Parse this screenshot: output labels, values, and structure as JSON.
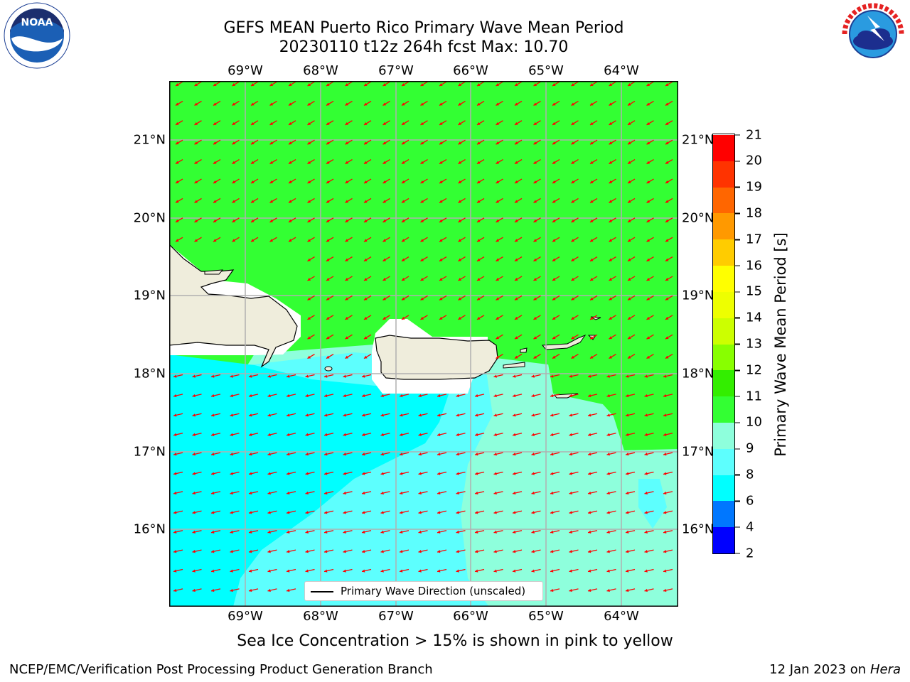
{
  "title_line1": "GEFS MEAN Puerto Rico Primary Wave Mean Period",
  "title_line2": "20230110 t12z 264h fcst   Max: 10.70",
  "lon_labels": [
    "69°W",
    "68°W",
    "67°W",
    "66°W",
    "65°W",
    "64°W"
  ],
  "lat_labels": [
    "21°N",
    "20°N",
    "19°N",
    "18°N",
    "17°N",
    "16°N"
  ],
  "colorbar": {
    "label": "Primary Wave Mean Period [s]",
    "ticks": [
      "2",
      "4",
      "6",
      "8",
      "9",
      "10",
      "11",
      "12",
      "13",
      "14",
      "15",
      "16",
      "17",
      "18",
      "19",
      "20",
      "21"
    ],
    "colors": [
      "#0000ff",
      "#0077ff",
      "#00ffff",
      "#5dfffe",
      "#8effdc",
      "#33ff33",
      "#33ee00",
      "#88ff00",
      "#ccff00",
      "#eeff00",
      "#ffff00",
      "#ffcc00",
      "#ff9900",
      "#ff6600",
      "#ff3300",
      "#ff0000"
    ]
  },
  "legend_text": "Primary Wave Direction (unscaled)",
  "ice_note": "Sea Ice Concentration > 15% is shown in pink to yellow",
  "footer_left": "NCEP/EMC/Verification Post Processing Product Generation Branch",
  "footer_right_prefix": "12 Jan 2023 on ",
  "footer_right_host": "Hera",
  "colors": {
    "green_region": "#33ff33",
    "cyan_region": "#00ffff",
    "light_cyan_region": "#5dfffe",
    "pale_cyan_region": "#8effdc",
    "land": "#efeddc",
    "arrows": "#ff0000",
    "grid": "#b0b0b0"
  }
}
